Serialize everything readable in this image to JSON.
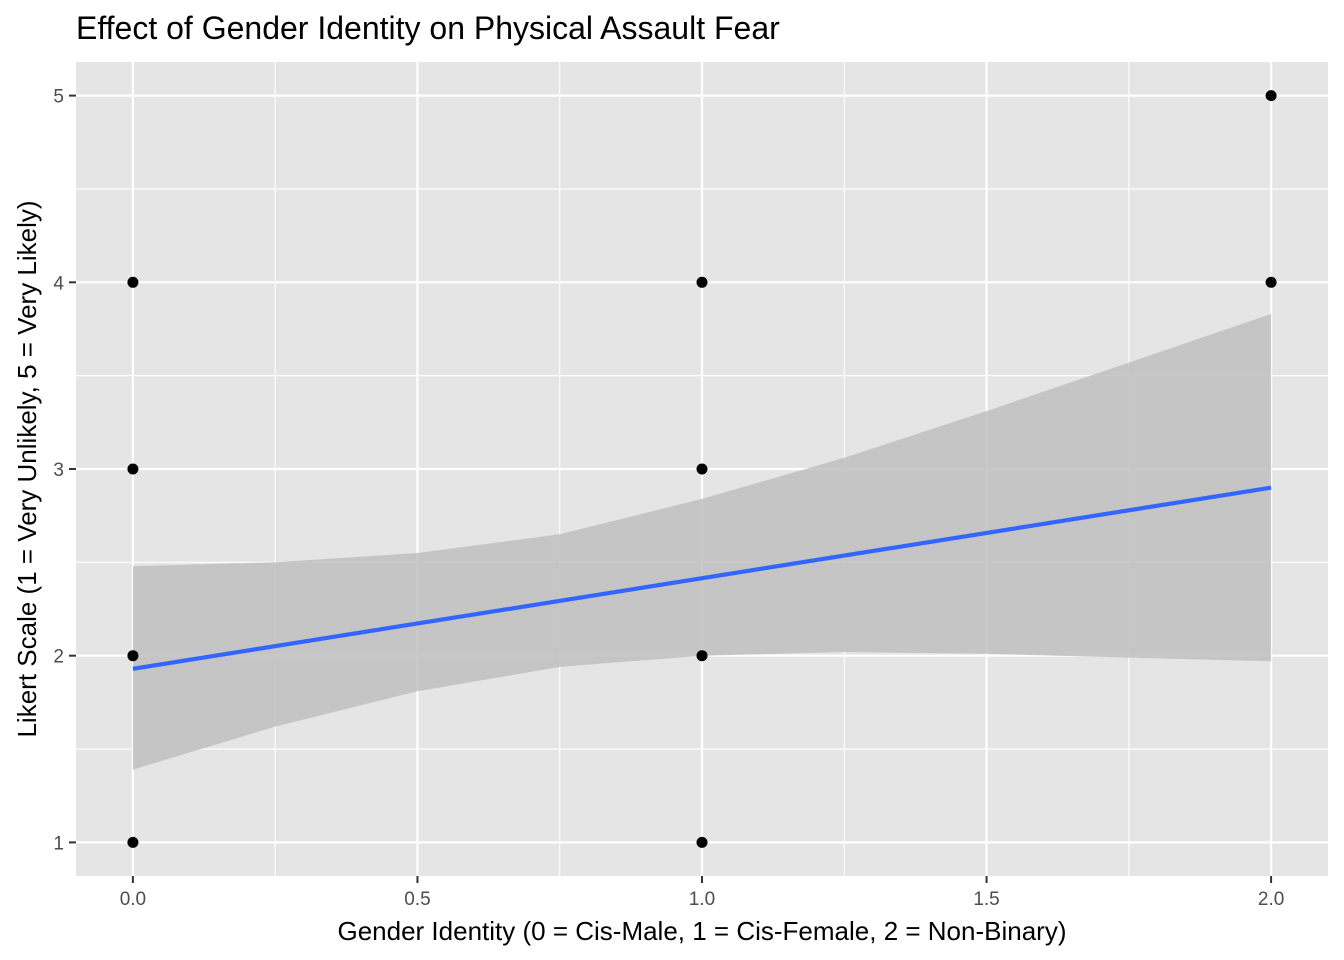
{
  "chart_data": {
    "type": "scatter",
    "title": "Effect of Gender Identity on Physical Assault Fear",
    "xlabel": "Gender Identity (0 = Cis-Male, 1 = Cis-Female, 2 = Non-Binary)",
    "ylabel": "Likert Scale (1 = Very Unlikely, 5 = Very Likely)",
    "xlim": [
      -0.1,
      2.1
    ],
    "ylim": [
      0.82,
      5.18
    ],
    "x_ticks": [
      0.0,
      0.5,
      1.0,
      1.5,
      2.0
    ],
    "x_tick_labels": [
      "0.0",
      "0.5",
      "1.0",
      "1.5",
      "2.0"
    ],
    "y_ticks": [
      1,
      2,
      3,
      4,
      5
    ],
    "y_tick_labels": [
      "1",
      "2",
      "3",
      "4",
      "5"
    ],
    "grid": true,
    "points": [
      {
        "x": 0,
        "y": 1
      },
      {
        "x": 0,
        "y": 2
      },
      {
        "x": 0,
        "y": 3
      },
      {
        "x": 0,
        "y": 4
      },
      {
        "x": 1,
        "y": 1
      },
      {
        "x": 1,
        "y": 2
      },
      {
        "x": 1,
        "y": 3
      },
      {
        "x": 1,
        "y": 4
      },
      {
        "x": 2,
        "y": 4
      },
      {
        "x": 2,
        "y": 5
      }
    ],
    "fit_line": {
      "x": [
        0,
        2
      ],
      "y": [
        1.93,
        2.9
      ]
    },
    "confidence_band": {
      "x": [
        0,
        0.25,
        0.5,
        0.75,
        1.0,
        1.25,
        1.5,
        1.75,
        2.0
      ],
      "lower": [
        1.39,
        1.62,
        1.81,
        1.94,
        2.0,
        2.02,
        2.01,
        1.99,
        1.97
      ],
      "upper": [
        2.48,
        2.5,
        2.55,
        2.65,
        2.84,
        3.06,
        3.31,
        3.57,
        3.83
      ]
    },
    "colors": {
      "panel_background": "#e5e5e5",
      "grid": "#ffffff",
      "points": "#000000",
      "fit_line": "#3366ff",
      "band": "#bfbfbf",
      "tick_label": "#4d4d4d"
    }
  }
}
